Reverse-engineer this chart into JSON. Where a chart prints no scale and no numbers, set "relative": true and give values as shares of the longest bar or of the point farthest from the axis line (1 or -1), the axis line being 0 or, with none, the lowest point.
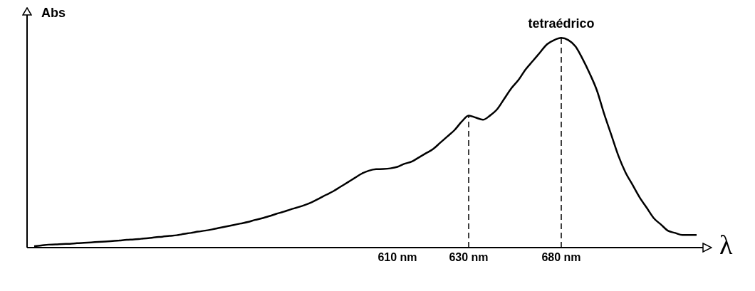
{
  "chart_data": {
    "type": "line",
    "relative": true,
    "xlabel": "λ",
    "ylabel": "Abs",
    "marker": "none",
    "line_style": "solid",
    "categories": [
      null,
      null,
      null,
      null,
      null,
      null,
      null,
      null,
      null,
      null,
      null,
      null,
      null,
      null,
      null,
      null,
      null,
      null,
      null,
      null,
      null,
      null,
      null,
      null,
      null,
      null,
      null,
      null,
      null,
      null,
      null,
      null,
      null,
      null,
      null,
      null,
      null,
      null,
      null,
      null,
      null,
      null,
      null,
      null,
      null,
      null,
      null,
      null,
      null,
      null,
      null,
      "610 nm",
      null,
      null,
      null,
      null,
      null,
      null,
      null,
      null,
      null,
      "630 nm",
      null,
      null,
      null,
      null,
      null,
      null,
      null,
      null,
      null,
      null,
      null,
      null,
      "680 nm",
      null,
      null,
      null,
      null,
      null,
      null,
      null,
      null,
      null,
      null,
      null,
      null,
      null,
      null,
      null,
      null,
      null,
      null,
      null
    ],
    "series": [
      {
        "color": "#000000",
        "values": [
          0.007,
          0.01,
          0.014,
          0.015,
          0.017,
          0.018,
          0.021,
          0.023,
          0.025,
          0.027,
          0.029,
          0.031,
          0.034,
          0.037,
          0.039,
          0.042,
          0.045,
          0.049,
          0.052,
          0.056,
          0.059,
          0.065,
          0.07,
          0.076,
          0.081,
          0.087,
          0.094,
          0.101,
          0.108,
          0.115,
          0.122,
          0.132,
          0.14,
          0.15,
          0.161,
          0.171,
          0.182,
          0.192,
          0.203,
          0.217,
          0.234,
          0.252,
          0.269,
          0.29,
          0.311,
          0.332,
          0.353,
          0.367,
          0.374,
          0.375,
          0.378,
          0.385,
          0.4,
          0.41,
          0.43,
          0.45,
          0.47,
          0.5,
          0.53,
          0.56,
          0.6,
          0.63,
          0.62,
          0.61,
          0.63,
          0.66,
          0.71,
          0.76,
          0.8,
          0.85,
          0.89,
          0.93,
          0.97,
          0.99,
          1.0,
          0.99,
          0.96,
          0.9,
          0.83,
          0.75,
          0.64,
          0.54,
          0.44,
          0.36,
          0.3,
          0.24,
          0.19,
          0.14,
          0.11,
          0.08,
          0.07,
          0.06,
          0.06,
          0.06
        ]
      }
    ],
    "ref_lines": [
      {
        "axis": "x",
        "value": "630 nm",
        "line_style": "dashed",
        "color": "#000000"
      },
      {
        "axis": "x",
        "value": "680 nm",
        "line_style": "dashed",
        "color": "#000000"
      }
    ],
    "annotations": [
      {
        "text": "tetraédrico",
        "x": "680 nm",
        "y": 1.0
      }
    ]
  }
}
